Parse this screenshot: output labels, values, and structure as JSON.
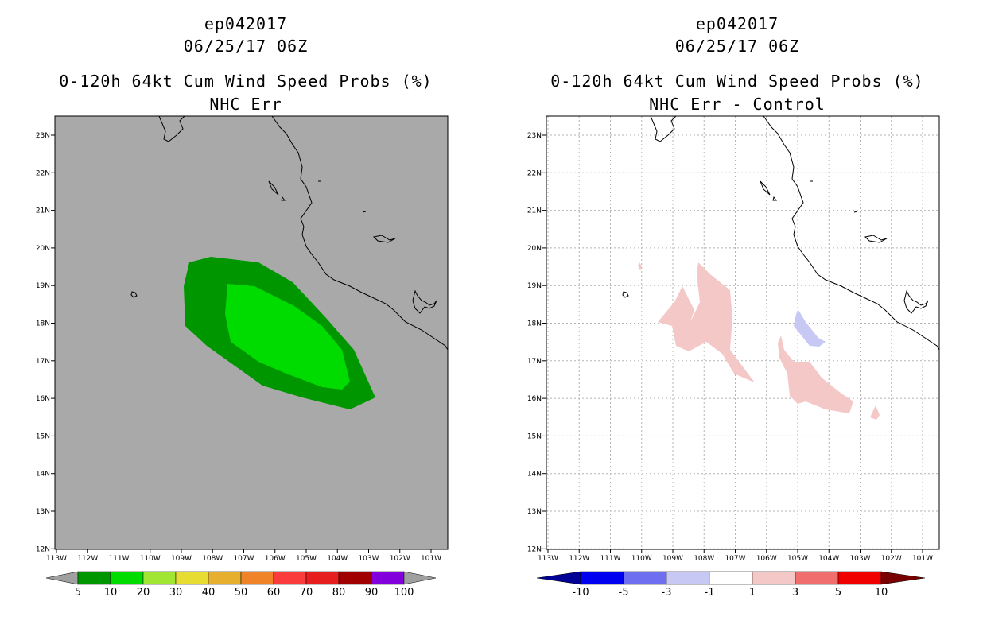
{
  "left_panel": {
    "title_storm": "ep042017",
    "title_date": "06/25/17 06Z",
    "title_product": "0-120h 64kt Cum Wind Speed Probs (%)",
    "title_subtitle": "NHC Err",
    "lat_labels": [
      "23N",
      "22N",
      "21N",
      "20N",
      "19N",
      "18N",
      "17N",
      "16N",
      "15N",
      "14N",
      "13N",
      "12N"
    ],
    "lon_labels": [
      "113W",
      "112W",
      "111W",
      "110W",
      "109W",
      "108W",
      "107W",
      "106W",
      "105W",
      "104W",
      "103W",
      "102W",
      "101W"
    ],
    "colorbar": {
      "labels": [
        "5",
        "10",
        "20",
        "30",
        "40",
        "50",
        "60",
        "70",
        "80",
        "90",
        "100"
      ],
      "colors": [
        "#009600",
        "#00dc00",
        "#a0e632",
        "#e6dc32",
        "#e6af2d",
        "#f08228",
        "#fa3c3c",
        "#e61e1e",
        "#a00000",
        "#8200dc",
        "#a0a0a0"
      ]
    },
    "background_color": "#a9a9a9"
  },
  "right_panel": {
    "title_storm": "ep042017",
    "title_date": "06/25/17 06Z",
    "title_product": "0-120h 64kt Cum Wind Speed Probs (%)",
    "title_subtitle": "NHC Err - Control",
    "lat_labels": [
      "23N",
      "22N",
      "21N",
      "20N",
      "19N",
      "18N",
      "17N",
      "16N",
      "15N",
      "14N",
      "13N",
      "12N"
    ],
    "lon_labels": [
      "113W",
      "112W",
      "111W",
      "110W",
      "109W",
      "108W",
      "107W",
      "106W",
      "105W",
      "104W",
      "103W",
      "102W",
      "101W"
    ],
    "colorbar": {
      "labels": [
        "-10",
        "-5",
        "-3",
        "-1",
        "1",
        "3",
        "5",
        "10"
      ],
      "colors": [
        "#000096",
        "#0000f0",
        "#6e6ef0",
        "#c8c8f5",
        "#ffffff",
        "#f5c8c8",
        "#f06e6e",
        "#f00000",
        "#780000"
      ]
    },
    "positive_color": "#f5c8c8",
    "negative_color": "#c8c8f5"
  }
}
